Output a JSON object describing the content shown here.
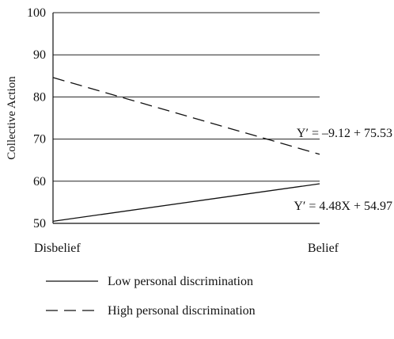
{
  "chart_data": {
    "type": "line",
    "categories": [
      "Disbelief",
      "Belief"
    ],
    "ylabel": "Collective Action",
    "ylim": [
      50,
      100
    ],
    "yticks": [
      50,
      60,
      70,
      80,
      90,
      100
    ],
    "grid": true,
    "legend_position": "bottom",
    "series": [
      {
        "name": "Low personal discrimination",
        "line_style": "solid",
        "values": [
          50.5,
          59.4
        ],
        "equation": "Y′ = 4.48X + 54.97"
      },
      {
        "name": "High personal discrimination",
        "line_style": "dashed",
        "values": [
          84.6,
          66.4
        ],
        "equation": "Y′ = –9.12 + 75.53"
      }
    ]
  }
}
